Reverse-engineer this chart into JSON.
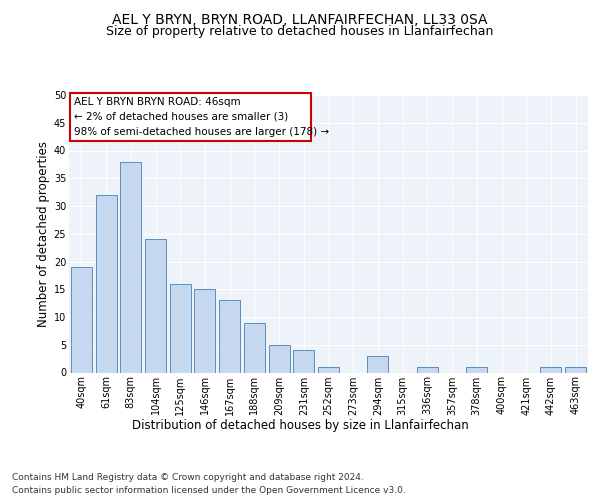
{
  "title1": "AEL Y BRYN, BRYN ROAD, LLANFAIRFECHAN, LL33 0SA",
  "title2": "Size of property relative to detached houses in Llanfairfechan",
  "xlabel": "Distribution of detached houses by size in Llanfairfechan",
  "ylabel": "Number of detached properties",
  "categories": [
    "40sqm",
    "61sqm",
    "83sqm",
    "104sqm",
    "125sqm",
    "146sqm",
    "167sqm",
    "188sqm",
    "209sqm",
    "231sqm",
    "252sqm",
    "273sqm",
    "294sqm",
    "315sqm",
    "336sqm",
    "357sqm",
    "378sqm",
    "400sqm",
    "421sqm",
    "442sqm",
    "463sqm"
  ],
  "values": [
    19,
    32,
    38,
    24,
    16,
    15,
    13,
    9,
    5,
    4,
    1,
    0,
    3,
    0,
    1,
    0,
    1,
    0,
    0,
    1,
    1
  ],
  "bar_color": "#c5d8f0",
  "bar_edge_color": "#5a8fc0",
  "annotation_box_text": "AEL Y BRYN BRYN ROAD: 46sqm\n← 2% of detached houses are smaller (3)\n98% of semi-detached houses are larger (178) →",
  "annotation_box_color": "#ffffff",
  "annotation_box_edge_color": "#cc0000",
  "footer_line1": "Contains HM Land Registry data © Crown copyright and database right 2024.",
  "footer_line2": "Contains public sector information licensed under the Open Government Licence v3.0.",
  "ylim": [
    0,
    50
  ],
  "yticks": [
    0,
    5,
    10,
    15,
    20,
    25,
    30,
    35,
    40,
    45,
    50
  ],
  "bg_color": "#eef3fa",
  "fig_bg_color": "#ffffff",
  "grid_color": "#ffffff",
  "title_fontsize": 10,
  "subtitle_fontsize": 9,
  "axis_label_fontsize": 8.5,
  "tick_fontsize": 7,
  "footer_fontsize": 6.5,
  "annot_fontsize": 7.5
}
